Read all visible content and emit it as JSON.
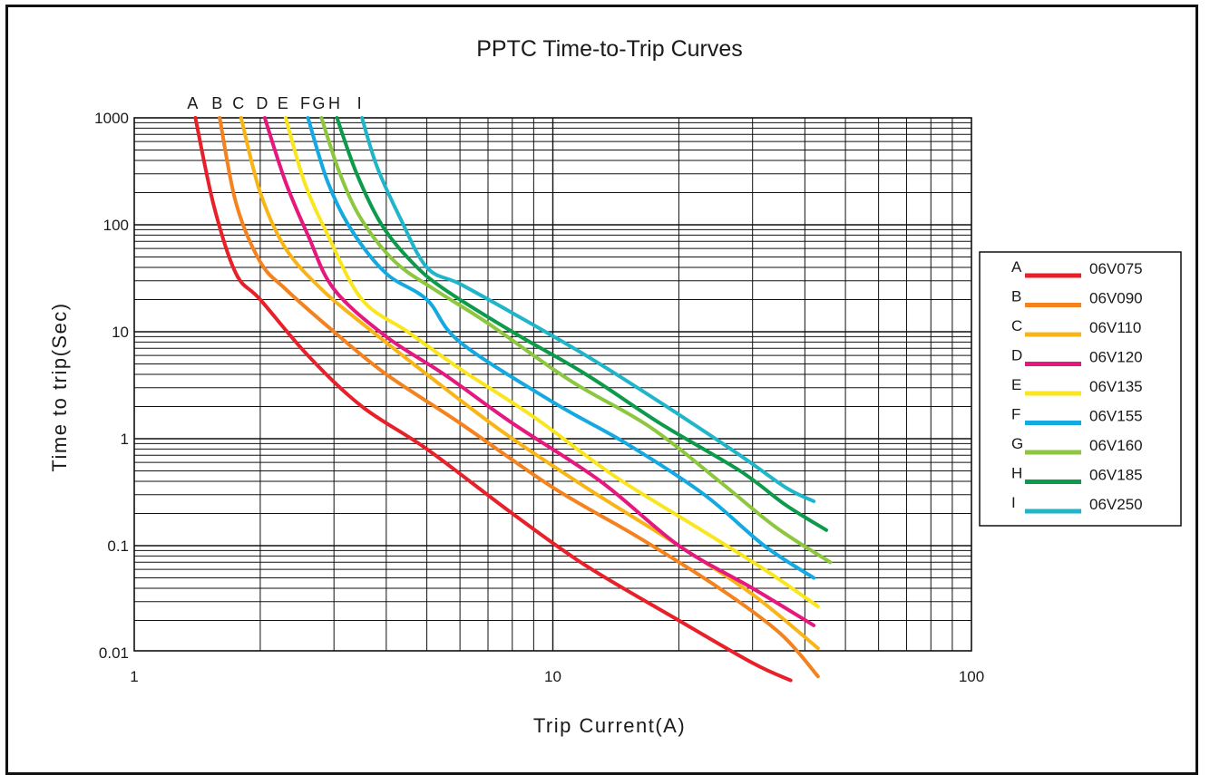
{
  "chart_data": {
    "type": "line",
    "title": "PPTC Time-to-Trip Curves",
    "xlabel": "Trip Current(A)",
    "ylabel": "Time to trip(Sec)",
    "x_scale": "log",
    "y_scale": "log",
    "xlim": [
      1,
      100
    ],
    "ylim": [
      0.005,
      1000
    ],
    "x_ticks": [
      {
        "value": 1,
        "label": "1"
      },
      {
        "value": 10,
        "label": "10"
      },
      {
        "value": 100,
        "label": "100"
      }
    ],
    "y_ticks": [
      {
        "value": 1000,
        "label": "1000"
      },
      {
        "value": 100,
        "label": "100"
      },
      {
        "value": 10,
        "label": "10"
      },
      {
        "value": 1,
        "label": "1"
      },
      {
        "value": 0.1,
        "label": "0.1"
      },
      {
        "value": 0.01,
        "label": "0.01"
      }
    ],
    "grid": true,
    "legend_position": "right",
    "series": [
      {
        "name": "06V075",
        "letter": "A",
        "color": "#e8202a",
        "x": [
          1.4,
          1.55,
          1.75,
          2.0,
          2.6,
          3.5,
          5.0,
          8.0,
          12.0,
          20.0,
          30.0,
          37.0
        ],
        "y": [
          1000,
          150,
          35,
          20,
          6,
          2,
          0.8,
          0.2,
          0.065,
          0.02,
          0.008,
          0.0055
        ]
      },
      {
        "name": "06V090",
        "letter": "B",
        "color": "#f4821f",
        "x": [
          1.6,
          1.75,
          2.0,
          2.3,
          3.0,
          4.0,
          6.0,
          10.0,
          16.0,
          25.0,
          35.0,
          43.0
        ],
        "y": [
          1000,
          160,
          45,
          25,
          10,
          4,
          1.4,
          0.35,
          0.12,
          0.04,
          0.015,
          0.006
        ]
      },
      {
        "name": "06V110",
        "letter": "C",
        "color": "#f9b418",
        "x": [
          1.8,
          2.0,
          2.3,
          2.8,
          3.5,
          5.0,
          7.5,
          12.0,
          20.0,
          30.0,
          43.0
        ],
        "y": [
          1000,
          200,
          60,
          25,
          12,
          4,
          1.2,
          0.35,
          0.1,
          0.035,
          0.011
        ]
      },
      {
        "name": "06V120",
        "letter": "D",
        "color": "#e5187e",
        "x": [
          2.05,
          2.3,
          2.6,
          3.0,
          4.0,
          5.5,
          8.0,
          13.0,
          20.0,
          30.0,
          42.0
        ],
        "y": [
          1000,
          250,
          80,
          25,
          9,
          4,
          1.4,
          0.4,
          0.1,
          0.04,
          0.018
        ]
      },
      {
        "name": "06V135",
        "letter": "E",
        "color": "#fae61e",
        "x": [
          2.3,
          2.55,
          2.9,
          3.5,
          4.5,
          6.0,
          9.0,
          14.0,
          22.0,
          32.0,
          43.0
        ],
        "y": [
          1000,
          250,
          80,
          20,
          10,
          4.5,
          1.6,
          0.45,
          0.15,
          0.06,
          0.027
        ]
      },
      {
        "name": "06V155",
        "letter": "F",
        "color": "#14a9e1",
        "x": [
          2.6,
          2.9,
          3.3,
          4.0,
          5.0,
          6.0,
          10.0,
          15.0,
          23.0,
          32.0,
          42.0
        ],
        "y": [
          1000,
          250,
          90,
          35,
          20,
          8,
          2.2,
          0.9,
          0.3,
          0.1,
          0.05
        ]
      },
      {
        "name": "06V160",
        "letter": "G",
        "color": "#8dc63f",
        "x": [
          2.8,
          3.1,
          3.5,
          4.2,
          5.2,
          7.0,
          11.0,
          17.0,
          25.0,
          34.0,
          46.0
        ],
        "y": [
          1000,
          300,
          110,
          45,
          25,
          12,
          3.5,
          1.3,
          0.4,
          0.15,
          0.07
        ]
      },
      {
        "name": "06V185",
        "letter": "H",
        "color": "#0d9b4b",
        "x": [
          3.05,
          3.4,
          3.9,
          4.6,
          5.5,
          8.0,
          12.0,
          18.0,
          28.0,
          36.0,
          45.0
        ],
        "y": [
          1000,
          300,
          100,
          45,
          25,
          10,
          4,
          1.4,
          0.5,
          0.24,
          0.14
        ]
      },
      {
        "name": "06V250",
        "letter": "I",
        "color": "#20b5c9",
        "x": [
          3.5,
          3.8,
          4.3,
          5.0,
          6.0,
          8.0,
          12.0,
          18.0,
          28.0,
          36.0,
          42.0
        ],
        "y": [
          1000,
          350,
          120,
          40,
          28,
          15,
          6,
          2.2,
          0.7,
          0.35,
          0.26
        ]
      }
    ]
  }
}
